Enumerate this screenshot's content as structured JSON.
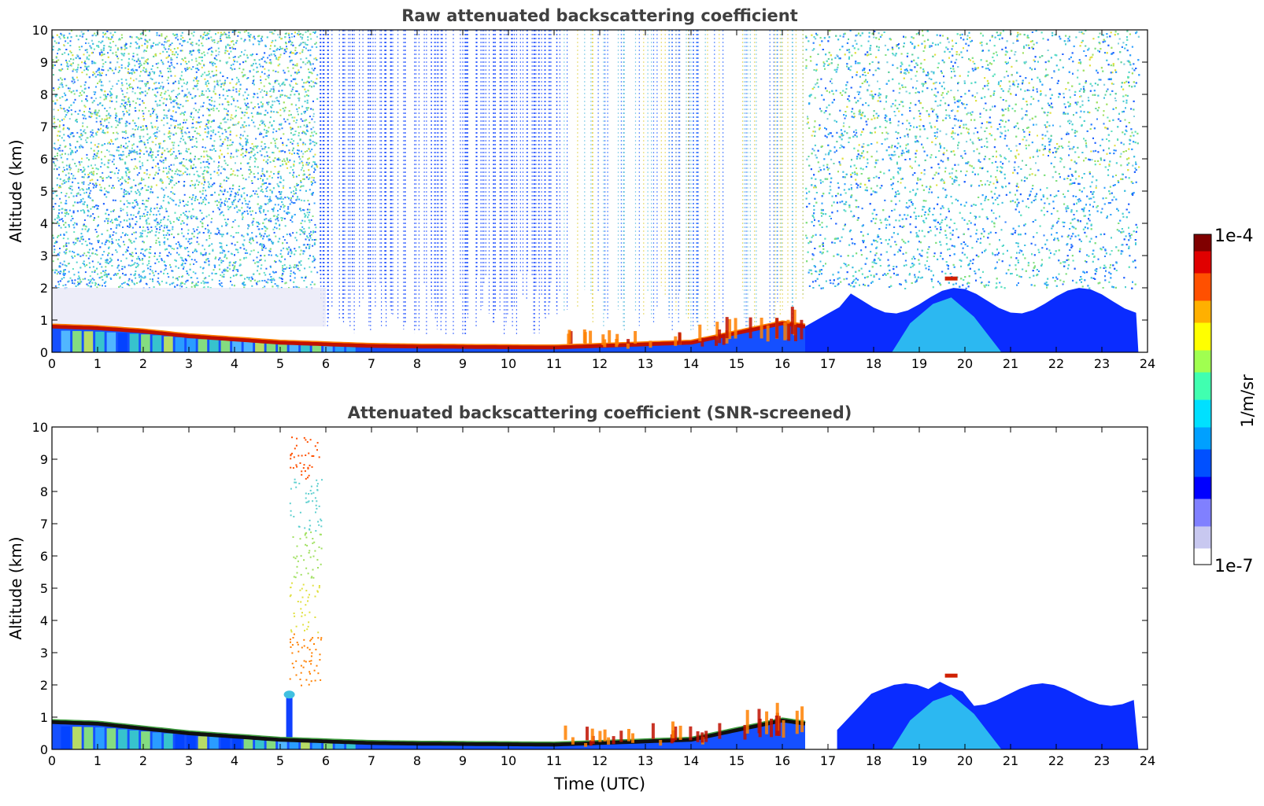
{
  "figure": {
    "colorbar": {
      "top_label": "1e-4",
      "bottom_label": "1e-7",
      "unit_label": "1/m/sr",
      "colormap": "jet with light-blue/white lower end",
      "scale": "log",
      "range": [
        1e-07,
        0.0001
      ],
      "stops": [
        "#ffffff",
        "#c8c8f0",
        "#8080ff",
        "#0000ff",
        "#0050ff",
        "#00a0ff",
        "#00e0ff",
        "#40ffb0",
        "#a0ff50",
        "#ffff00",
        "#ffb000",
        "#ff5000",
        "#e00000",
        "#800000"
      ]
    }
  },
  "chart_data": [
    {
      "type": "heatmap",
      "title": "Raw attenuated backscattering coefficient",
      "xlabel": "",
      "ylabel": "Altitude (km)",
      "xlim": [
        0,
        24
      ],
      "ylim": [
        0,
        10
      ],
      "x_ticks": [
        "0",
        "1",
        "2",
        "3",
        "4",
        "5",
        "6",
        "7",
        "8",
        "9",
        "10",
        "11",
        "12",
        "13",
        "14",
        "15",
        "16",
        "17",
        "18",
        "19",
        "20",
        "21",
        "22",
        "23",
        "24"
      ],
      "y_ticks": [
        "0",
        "1",
        "2",
        "3",
        "4",
        "5",
        "6",
        "7",
        "8",
        "9",
        "10"
      ],
      "grid": false,
      "data_end_time_utc": 23.8,
      "features": [
        {
          "name": "boundary layer top",
          "time": [
            0,
            1,
            2,
            3,
            4,
            5,
            6,
            7,
            8,
            9,
            10,
            11,
            12,
            13,
            14,
            15,
            16,
            16.5
          ],
          "altitude_km": [
            0.8,
            0.75,
            0.65,
            0.5,
            0.4,
            0.3,
            0.25,
            0.2,
            0.18,
            0.17,
            0.16,
            0.15,
            0.2,
            0.25,
            0.3,
            0.6,
            0.9,
            0.8
          ]
        },
        {
          "name": "high noise background",
          "time_ranges": [
            [
              0,
              5.8
            ],
            [
              16.5,
              23.8
            ]
          ],
          "altitude_km": [
            2,
            10
          ]
        },
        {
          "name": "sparse blue noise streaks",
          "time_range": [
            5.8,
            11.2
          ],
          "altitude_km": [
            0.5,
            10
          ]
        },
        {
          "name": "low cloud layer",
          "time_range": [
            17.5,
            23.8
          ],
          "altitude_km": [
            0,
            2
          ]
        },
        {
          "name": "cloud top",
          "time": 19.7,
          "altitude_km": 2.3
        }
      ]
    },
    {
      "type": "heatmap",
      "title": "Attenuated backscattering coefficient (SNR-screened)",
      "xlabel": "Time (UTC)",
      "ylabel": "Altitude (km)",
      "xlim": [
        0,
        24
      ],
      "ylim": [
        0,
        10
      ],
      "x_ticks": [
        "0",
        "1",
        "2",
        "3",
        "4",
        "5",
        "6",
        "7",
        "8",
        "9",
        "10",
        "11",
        "12",
        "13",
        "14",
        "15",
        "16",
        "17",
        "18",
        "19",
        "20",
        "21",
        "22",
        "23",
        "24"
      ],
      "y_ticks": [
        "0",
        "1",
        "2",
        "3",
        "4",
        "5",
        "6",
        "7",
        "8",
        "9",
        "10"
      ],
      "grid": false,
      "data_end_time_utc": 23.8,
      "features": [
        {
          "name": "boundary layer top",
          "time": [
            0,
            1,
            2,
            3,
            4,
            5,
            6,
            7,
            8,
            9,
            10,
            11,
            12,
            13,
            14,
            15,
            16,
            16.5
          ],
          "altitude_km": [
            0.85,
            0.8,
            0.65,
            0.5,
            0.4,
            0.3,
            0.25,
            0.2,
            0.18,
            0.17,
            0.16,
            0.15,
            0.2,
            0.25,
            0.3,
            0.6,
            0.9,
            0.8
          ]
        },
        {
          "name": "plume",
          "time": 5.2,
          "altitude_km": [
            0,
            1.7
          ]
        },
        {
          "name": "sparse high signal",
          "time_range": [
            5.2,
            5.9
          ],
          "altitude_km": [
            2,
            9.8
          ]
        },
        {
          "name": "cloud layer",
          "time_range": [
            17.2,
            23.8
          ],
          "altitude_km": [
            0,
            2.3
          ]
        },
        {
          "name": "cloud top",
          "time": 19.7,
          "altitude_km": 2.3
        }
      ]
    }
  ]
}
